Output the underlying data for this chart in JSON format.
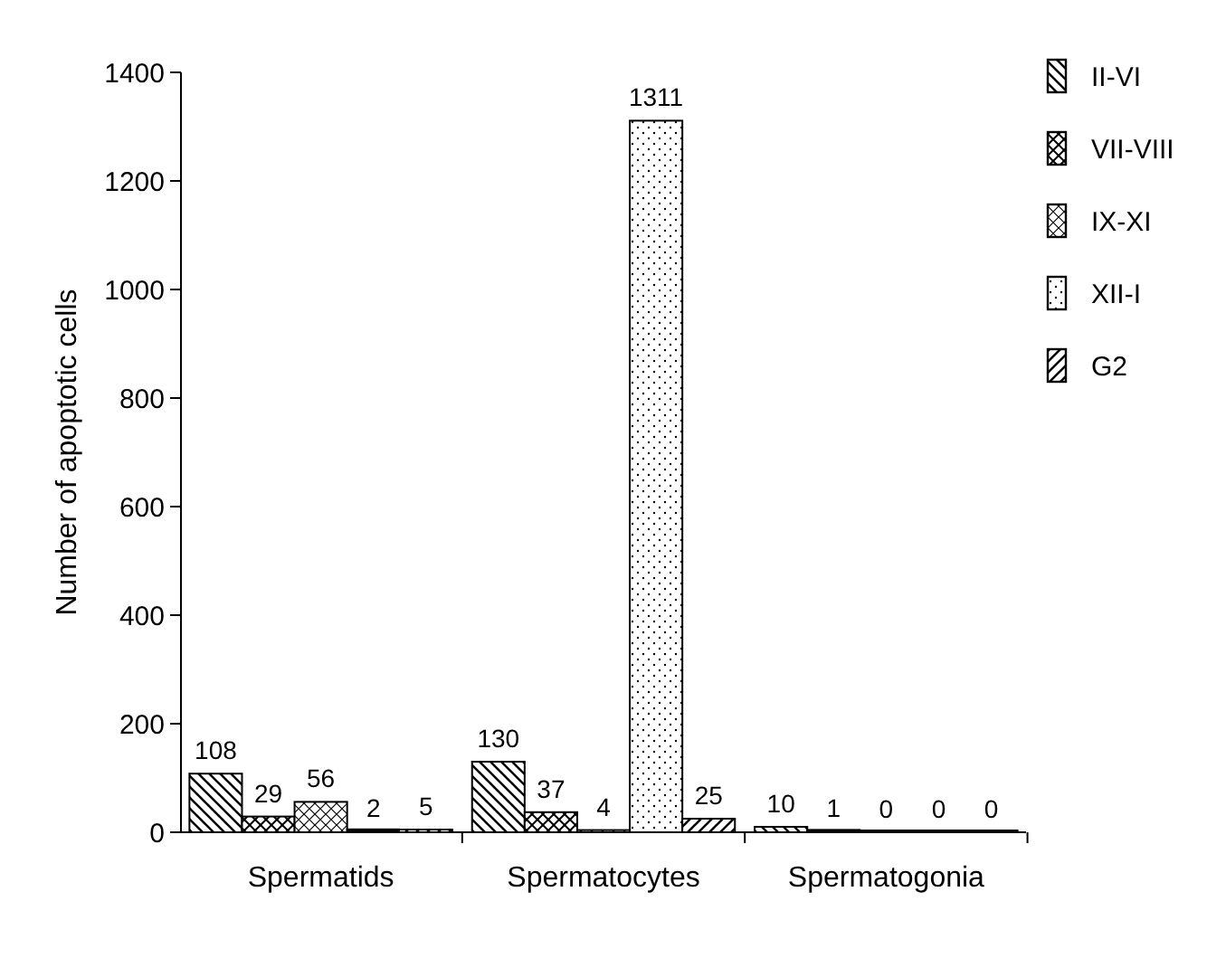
{
  "chart_data": {
    "type": "bar",
    "ylabel": "Number of apoptotic cells",
    "categories": [
      "Spermatids",
      "Spermatocytes",
      "Spermatogonia"
    ],
    "series": [
      {
        "name": "II-VI",
        "color": "#000000",
        "values": [
          108,
          130,
          10
        ]
      },
      {
        "name": "VII-VIII",
        "color": "#000000",
        "values": [
          29,
          37,
          1
        ]
      },
      {
        "name": "IX-XI",
        "color": "#000000",
        "values": [
          56,
          4,
          0
        ]
      },
      {
        "name": "XII-I",
        "color": "#000000",
        "values": [
          2,
          1311,
          0
        ]
      },
      {
        "name": "G2",
        "color": "#000000",
        "values": [
          5,
          25,
          0
        ]
      }
    ],
    "ylim": [
      0,
      1400
    ],
    "yticks": [
      0,
      200,
      400,
      600,
      800,
      1000,
      1200,
      1400
    ],
    "data_labels": true,
    "legend": "top right",
    "grid": false
  }
}
